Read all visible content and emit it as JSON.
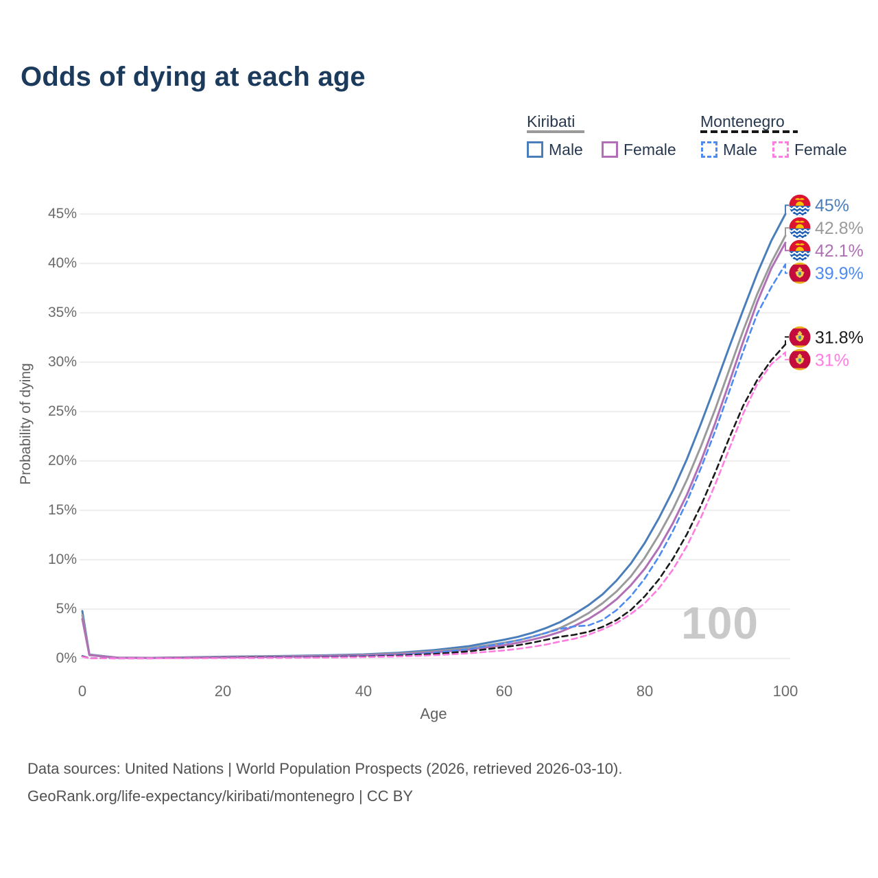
{
  "title": "Odds of dying at each age",
  "watermark": "100",
  "legend": {
    "kiribati": {
      "label": "Kiribati",
      "male_label": "Male",
      "female_label": "Female"
    },
    "montenegro": {
      "label": "Montenegro",
      "male_label": "Male",
      "female_label": "Female"
    }
  },
  "colors": {
    "title": "#1b3a5c",
    "grid": "#e9e9e9",
    "axis_text": "#6b6b6b",
    "kiribati_male": "#4a7ebb",
    "kiribati_total": "#9a9a9a",
    "kiribati_female": "#b16fb5",
    "montenegro_male": "#4d8bf0",
    "montenegro_total": "#1a1a1a",
    "montenegro_female": "#ff7ce0"
  },
  "y_axis": {
    "label": "Probability of dying",
    "ticks": [
      "0%",
      "5%",
      "10%",
      "15%",
      "20%",
      "25%",
      "30%",
      "35%",
      "40%",
      "45%"
    ]
  },
  "x_axis": {
    "label": "Age",
    "ticks": [
      0,
      20,
      40,
      60,
      80,
      100
    ]
  },
  "chart_data": {
    "type": "line",
    "title": "Odds of dying at each age",
    "xlabel": "Age",
    "ylabel": "Probability of dying",
    "xlim": [
      0,
      100
    ],
    "ylim": [
      0,
      45
    ],
    "grid": "horizontal",
    "legend_position": "top-right",
    "x": [
      0,
      1,
      5,
      10,
      15,
      20,
      25,
      30,
      35,
      40,
      45,
      50,
      55,
      60,
      62,
      64,
      66,
      68,
      70,
      72,
      74,
      76,
      78,
      80,
      82,
      84,
      86,
      88,
      90,
      92,
      94,
      96,
      98,
      100
    ],
    "series": [
      {
        "name": "Kiribati Male",
        "color_key": "kiribati_male",
        "dashed": false,
        "flag": "kiribati",
        "end_label": "45%",
        "values": [
          4.8,
          0.4,
          0.09,
          0.07,
          0.12,
          0.18,
          0.22,
          0.27,
          0.33,
          0.42,
          0.58,
          0.85,
          1.25,
          1.9,
          2.2,
          2.6,
          3.1,
          3.7,
          4.5,
          5.4,
          6.5,
          7.9,
          9.6,
          11.7,
          14.2,
          17.0,
          20.2,
          23.8,
          27.6,
          31.5,
          35.3,
          39.0,
          42.3,
          45.0
        ]
      },
      {
        "name": "Kiribati",
        "color_key": "kiribati_total",
        "dashed": false,
        "flag": "kiribati",
        "end_label": "42.8%",
        "values": [
          4.4,
          0.37,
          0.08,
          0.06,
          0.1,
          0.15,
          0.19,
          0.23,
          0.28,
          0.36,
          0.5,
          0.72,
          1.05,
          1.6,
          1.85,
          2.2,
          2.6,
          3.1,
          3.8,
          4.6,
          5.6,
          6.8,
          8.3,
          10.2,
          12.5,
          15.1,
          18.1,
          21.5,
          25.2,
          29.2,
          33.2,
          36.9,
          40.1,
          42.8
        ]
      },
      {
        "name": "Kiribati Female",
        "color_key": "kiribati_female",
        "dashed": false,
        "flag": "kiribati",
        "end_label": "42.1%",
        "values": [
          4.0,
          0.34,
          0.07,
          0.05,
          0.08,
          0.12,
          0.15,
          0.19,
          0.24,
          0.31,
          0.43,
          0.62,
          0.9,
          1.35,
          1.6,
          1.9,
          2.25,
          2.7,
          3.3,
          4.0,
          4.9,
          6.0,
          7.4,
          9.1,
          11.2,
          13.7,
          16.6,
          20.0,
          23.8,
          27.9,
          32.1,
          36.1,
          39.5,
          42.1
        ]
      },
      {
        "name": "Montenegro Male",
        "color_key": "montenegro_male",
        "dashed": true,
        "flag": "montenegro",
        "end_label": "39.9%",
        "values": [
          0.25,
          0.03,
          0.02,
          0.02,
          0.05,
          0.08,
          0.1,
          0.13,
          0.17,
          0.24,
          0.37,
          0.58,
          0.95,
          1.55,
          1.85,
          2.2,
          2.6,
          3.0,
          3.25,
          3.35,
          3.9,
          4.9,
          6.3,
          8.1,
          10.3,
          12.9,
          15.9,
          19.3,
          23.0,
          27.0,
          31.1,
          34.9,
          37.6,
          39.9
        ]
      },
      {
        "name": "Montenegro",
        "color_key": "montenegro_total",
        "dashed": true,
        "flag": "montenegro",
        "end_label": "31.8%",
        "values": [
          0.22,
          0.025,
          0.015,
          0.015,
          0.04,
          0.06,
          0.08,
          0.1,
          0.13,
          0.19,
          0.29,
          0.45,
          0.72,
          1.15,
          1.35,
          1.6,
          1.9,
          2.2,
          2.4,
          2.7,
          3.2,
          3.9,
          4.9,
          6.3,
          8.0,
          10.1,
          12.6,
          15.5,
          18.8,
          22.3,
          25.6,
          28.2,
          30.2,
          31.8
        ]
      },
      {
        "name": "Montenegro Female",
        "color_key": "montenegro_female",
        "dashed": true,
        "flag": "montenegro",
        "end_label": "31%",
        "values": [
          0.18,
          0.02,
          0.012,
          0.012,
          0.03,
          0.04,
          0.05,
          0.07,
          0.09,
          0.14,
          0.21,
          0.33,
          0.52,
          0.82,
          0.98,
          1.18,
          1.42,
          1.72,
          2.0,
          2.4,
          2.95,
          3.6,
          4.5,
          5.6,
          7.1,
          9.0,
          11.4,
          14.3,
          17.6,
          21.2,
          24.8,
          27.8,
          29.8,
          31.0
        ]
      }
    ]
  },
  "footer": {
    "line1": "Data sources: United Nations | World Population Prospects (2026, retrieved 2026-03-10).",
    "line2": "GeoRank.org/life-expectancy/kiribati/montenegro | CC BY"
  }
}
